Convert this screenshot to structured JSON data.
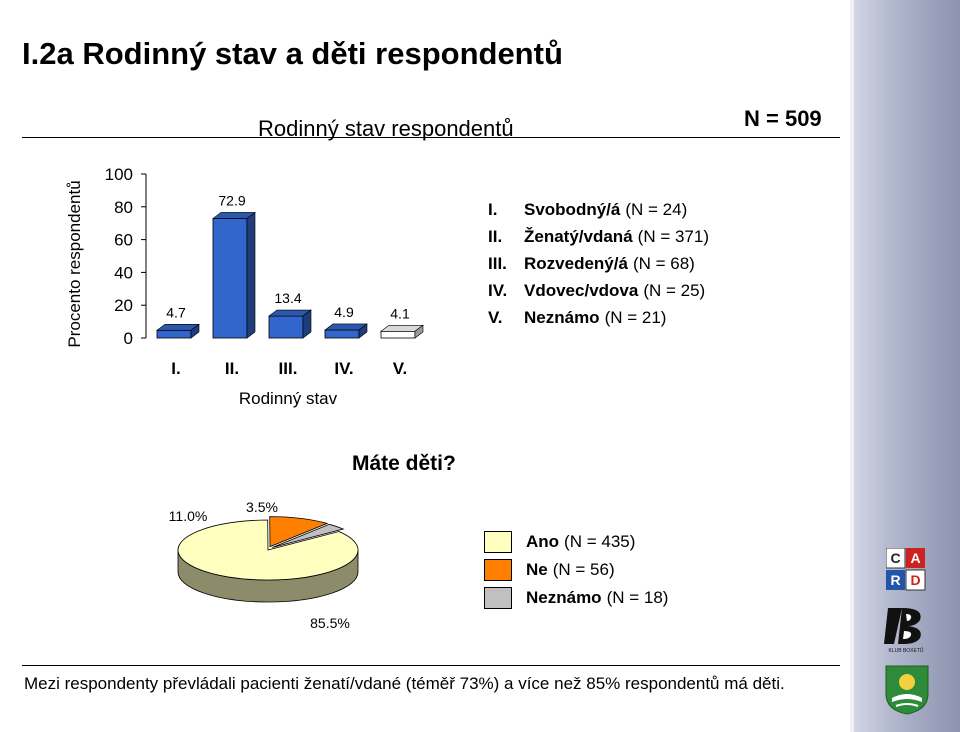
{
  "page": {
    "title": "I.2a Rodinný stav a děti respondentů",
    "n_total": "N = 509",
    "footer": "Mezi respondenty převládali pacienti ženatí/vdané (téměř 73%) a více než 85% respondentů má děti."
  },
  "bar_legend": [
    {
      "num": "I.",
      "label": "Svobodný/á",
      "n": "(N = 24)"
    },
    {
      "num": "II.",
      "label": "Ženatý/vdaná",
      "n": "(N = 371)"
    },
    {
      "num": "III.",
      "label": "Rozvedený/á",
      "n": "(N = 68)"
    },
    {
      "num": "IV.",
      "label": "Vdovec/vdova",
      "n": "(N = 25)"
    },
    {
      "num": "V.",
      "label": "Neznámo",
      "n": "(N = 21)"
    }
  ],
  "pie_legend": [
    {
      "label": "Ano",
      "n": "(N = 435)",
      "color": "#ffffc0"
    },
    {
      "label": "Ne",
      "n": "(N = 56)",
      "color": "#ff8000"
    },
    {
      "label": "Neznámo",
      "n": "(N = 18)",
      "color": "#c0c0c0"
    }
  ],
  "logos": {
    "card_letters": [
      "C",
      "A",
      "R",
      "D"
    ],
    "club_text": "KLUB BOXETŮ"
  },
  "chart_data": [
    {
      "type": "bar",
      "title": "Rodinný stav respondentů",
      "xlabel": "Rodinný stav",
      "ylabel": "Procento respondentů",
      "categories": [
        "I.",
        "II.",
        "III.",
        "IV.",
        "V."
      ],
      "values": [
        4.7,
        72.9,
        13.4,
        4.9,
        4.1
      ],
      "data_labels": [
        "4.7",
        "72.9",
        "13.4",
        "4.9",
        "4.1"
      ],
      "yticks": [
        "0",
        "20",
        "40",
        "60",
        "80",
        "100"
      ],
      "ylim": [
        0,
        100
      ],
      "colors": [
        "#3366cc",
        "#3366cc",
        "#3366cc",
        "#3366cc",
        "#ffffff"
      ],
      "grid": false,
      "style": "3d"
    },
    {
      "type": "pie",
      "title": "Máte děti?",
      "categories": [
        "Ano",
        "Ne",
        "Neznámo"
      ],
      "values": [
        85.5,
        11.0,
        3.5
      ],
      "data_labels": [
        "85.5%",
        "11.0%",
        "3.5%"
      ],
      "colors": [
        "#ffffc0",
        "#ff8000",
        "#c0c0c0"
      ],
      "legend": "right",
      "style": "3d"
    }
  ]
}
